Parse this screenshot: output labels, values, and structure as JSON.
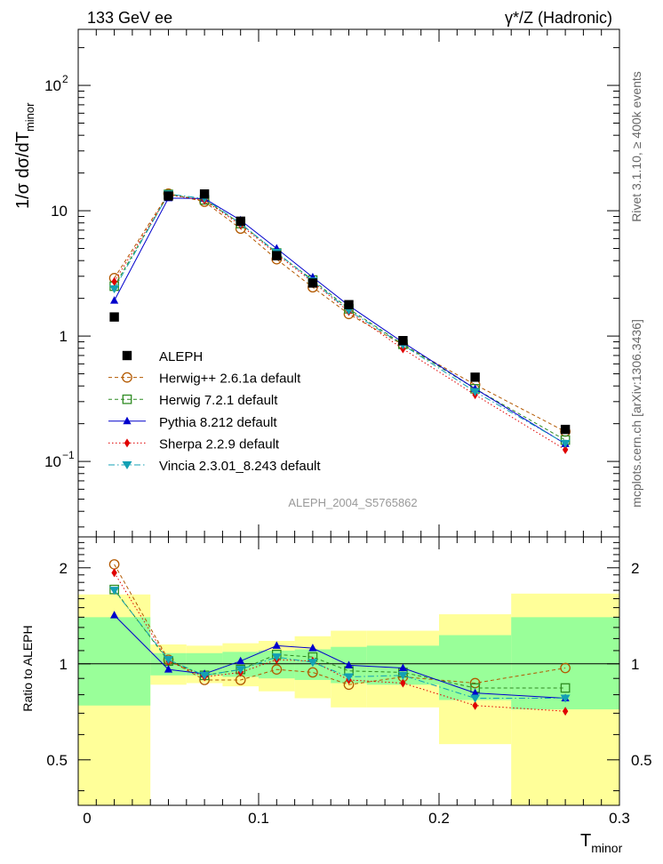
{
  "header": {
    "left": "133 GeV ee",
    "right": "γ*/Z (Hadronic)"
  },
  "side_text": {
    "top": "Rivet 3.1.10, ≥ 400k events",
    "bottom": "mcplots.cern.ch [arXiv:1306.3436]"
  },
  "watermark": "ALEPH_2004_S5765862",
  "colors": {
    "data": "#000000",
    "herwigpp": "#b35900",
    "herwig7": "#2e8b22",
    "pythia": "#0000cc",
    "sherpa": "#e00000",
    "vincia": "#14a0b4",
    "band_inner": "#99ff99",
    "band_outer": "#ffff99"
  },
  "chart_data": [
    {
      "type": "line",
      "panel": "main",
      "yscale": "log",
      "ylabel_main": "1/σ  dσ/dT",
      "ylabel_sub": "minor",
      "xlim": [
        0,
        0.3
      ],
      "ylim": [
        0.025,
        280
      ],
      "yticks": [
        {
          "value": 0.1,
          "label": "10",
          "sup": "−1"
        },
        {
          "value": 1,
          "label": "1",
          "sup": ""
        },
        {
          "value": 10,
          "label": "10",
          "sup": ""
        },
        {
          "value": 100,
          "label": "10",
          "sup": "2"
        }
      ],
      "x": [
        0.02,
        0.05,
        0.07,
        0.09,
        0.11,
        0.13,
        0.15,
        0.18,
        0.22,
        0.27
      ],
      "xerr": [
        0.02,
        0.01,
        0.01,
        0.01,
        0.01,
        0.01,
        0.01,
        0.02,
        0.02,
        0.03
      ],
      "series": [
        {
          "name": "ALEPH",
          "key": "data",
          "marker": "square",
          "values": [
            1.42,
            13.1,
            13.6,
            8.25,
            4.38,
            2.65,
            1.78,
            0.92,
            0.47,
            0.18
          ]
        },
        {
          "name": "Herwig++ 2.6.1a default",
          "key": "herwigpp",
          "marker": "open-circle",
          "dash": "4,3",
          "values": [
            2.9,
            13.7,
            11.8,
            7.2,
            4.1,
            2.45,
            1.5,
            0.85,
            0.41,
            0.173
          ]
        },
        {
          "name": "Herwig 7.2.1 default",
          "key": "herwig7",
          "marker": "open-square",
          "dash": "4,3",
          "values": [
            2.5,
            13.5,
            12.2,
            7.9,
            4.6,
            2.8,
            1.65,
            0.86,
            0.38,
            0.148
          ]
        },
        {
          "name": "Pythia 8.212 default",
          "key": "pythia",
          "marker": "triangle-up",
          "dash": "",
          "values": [
            1.92,
            12.6,
            12.5,
            8.4,
            5.0,
            2.95,
            1.75,
            0.89,
            0.38,
            0.138
          ]
        },
        {
          "name": "Sherpa 2.2.9 default",
          "key": "sherpa",
          "marker": "diamond",
          "dash": "1.5,2.5",
          "values": [
            2.72,
            13.4,
            12.1,
            7.7,
            4.5,
            2.7,
            1.57,
            0.79,
            0.34,
            0.124
          ]
        },
        {
          "name": "Vincia 2.3.01_8.243 default",
          "key": "vincia",
          "marker": "triangle-down",
          "dash": "7,3,1.5,3",
          "values": [
            2.38,
            13.6,
            12.5,
            7.9,
            4.65,
            2.75,
            1.6,
            0.85,
            0.36,
            0.139
          ]
        }
      ]
    },
    {
      "type": "line",
      "panel": "ratio",
      "yscale": "log",
      "ylabel": "Ratio to ALEPH",
      "xlabel_main": "T",
      "xlabel_sub": "minor",
      "xlim": [
        0,
        0.3
      ],
      "ylim": [
        0.36,
        2.5
      ],
      "yticks": [
        {
          "value": 0.5,
          "label": "0.5"
        },
        {
          "value": 1,
          "label": "1"
        },
        {
          "value": 2,
          "label": "2"
        }
      ],
      "xticks": [
        {
          "value": 0,
          "label": "0"
        },
        {
          "value": 0.1,
          "label": "0.1"
        },
        {
          "value": 0.2,
          "label": "0.2"
        },
        {
          "value": 0.3,
          "label": "0.3"
        }
      ],
      "bands": [
        {
          "x0": 0.0,
          "x1": 0.04,
          "inner": [
            0.74,
            1.4
          ],
          "outer": [
            0.36,
            1.65
          ]
        },
        {
          "x0": 0.04,
          "x1": 0.06,
          "inner": [
            0.92,
            1.08
          ],
          "outer": [
            0.86,
            1.15
          ]
        },
        {
          "x0": 0.06,
          "x1": 0.08,
          "inner": [
            0.92,
            1.08
          ],
          "outer": [
            0.87,
            1.14
          ]
        },
        {
          "x0": 0.08,
          "x1": 0.1,
          "inner": [
            0.91,
            1.09
          ],
          "outer": [
            0.85,
            1.16
          ]
        },
        {
          "x0": 0.1,
          "x1": 0.12,
          "inner": [
            0.9,
            1.1
          ],
          "outer": [
            0.82,
            1.18
          ]
        },
        {
          "x0": 0.12,
          "x1": 0.14,
          "inner": [
            0.89,
            1.11
          ],
          "outer": [
            0.78,
            1.22
          ]
        },
        {
          "x0": 0.14,
          "x1": 0.16,
          "inner": [
            0.87,
            1.13
          ],
          "outer": [
            0.73,
            1.27
          ]
        },
        {
          "x0": 0.16,
          "x1": 0.2,
          "inner": [
            0.86,
            1.14
          ],
          "outer": [
            0.73,
            1.27
          ]
        },
        {
          "x0": 0.2,
          "x1": 0.24,
          "inner": [
            0.77,
            1.23
          ],
          "outer": [
            0.56,
            1.43
          ]
        },
        {
          "x0": 0.24,
          "x1": 0.3,
          "inner": [
            0.72,
            1.4
          ],
          "outer": [
            0.36,
            1.66
          ]
        }
      ],
      "x": [
        0.02,
        0.05,
        0.07,
        0.09,
        0.11,
        0.13,
        0.15,
        0.18,
        0.22,
        0.27
      ],
      "series": [
        {
          "name": "Herwig++ 2.6.1a default",
          "key": "herwigpp",
          "marker": "open-circle",
          "dash": "4,3",
          "values": [
            2.05,
            1.03,
            0.89,
            0.89,
            0.96,
            0.94,
            0.86,
            0.91,
            0.87,
            0.97
          ]
        },
        {
          "name": "Herwig 7.2.1 default",
          "key": "herwig7",
          "marker": "open-square",
          "dash": "4,3",
          "values": [
            1.71,
            1.02,
            0.92,
            0.96,
            1.07,
            1.05,
            0.95,
            0.94,
            0.84,
            0.84
          ]
        },
        {
          "name": "Pythia 8.212 default",
          "key": "pythia",
          "marker": "triangle-up",
          "dash": "",
          "values": [
            1.42,
            0.96,
            0.93,
            1.02,
            1.14,
            1.12,
            0.99,
            0.97,
            0.81,
            0.78
          ]
        },
        {
          "name": "Sherpa 2.2.9 default",
          "key": "sherpa",
          "marker": "diamond",
          "dash": "1.5,2.5",
          "values": [
            1.93,
            1.02,
            0.91,
            0.94,
            1.03,
            1.02,
            0.89,
            0.87,
            0.74,
            0.71
          ]
        },
        {
          "name": "Vincia 2.3.01_8.243 default",
          "key": "vincia",
          "marker": "triangle-down",
          "dash": "7,3,1.5,3",
          "values": [
            1.7,
            1.03,
            0.92,
            0.96,
            1.05,
            1.01,
            0.91,
            0.92,
            0.78,
            0.78
          ]
        }
      ]
    }
  ]
}
